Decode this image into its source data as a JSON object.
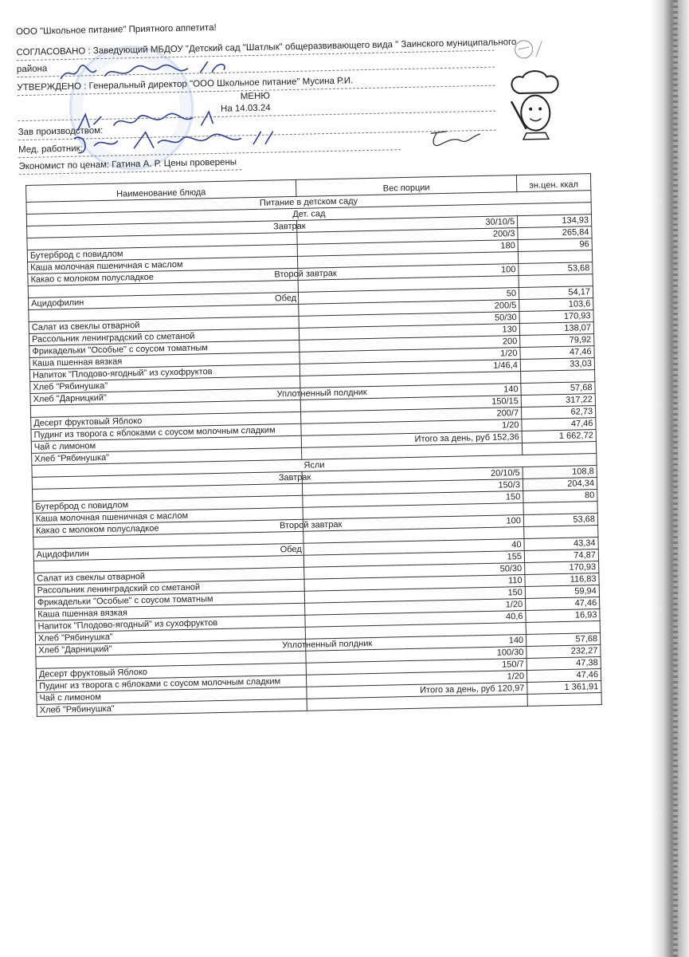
{
  "header": {
    "company": "ООО \"Школьное питание\" Приятного аппетита!",
    "agreed": "СОГЛАСОВАНО : Заведующий МБДОУ \"Детский сад \"Шатлык\" общеразвивающего вида \" Заинского муниципального",
    "agreed_cont": "района",
    "approved": "УТВЕРЖДЕНО : Генеральный директор \"ООО Школьное питание\" Мусина Р.И.",
    "menu_title": "МЕНЮ",
    "date": "На 14.03.24",
    "production_head": "Зав производством:",
    "medic": "Мед. работник:",
    "economist": "Экономист по ценам: Гатина А. Р.   Цены проверены"
  },
  "table": {
    "col_name": "Наименование блюда",
    "col_weight": "Вес порции",
    "col_kcal": "эн.цен. ккал",
    "title": "Питание в детском саду",
    "groups": [
      {
        "label": "Дет. сад",
        "rows": [
          {
            "name": "",
            "mid": "Завтрак",
            "weight": "30/10/5",
            "kcal": "134,93"
          },
          {
            "name": "",
            "mid": "",
            "weight": "200/3",
            "kcal": "265,84"
          },
          {
            "name": "Бутерброд с повидлом",
            "mid": "",
            "weight": "180",
            "kcal": "96"
          },
          {
            "name": "Каша молочная пшеничная с маслом",
            "mid": "",
            "weight": "",
            "kcal": ""
          },
          {
            "name": "Какао с молоком полусладкое",
            "mid": "Второй завтрак",
            "weight": "100",
            "kcal": "53,68"
          },
          {
            "name": "",
            "mid": "",
            "weight": "",
            "kcal": ""
          },
          {
            "name": "Ацидофилин",
            "mid": "Обед",
            "weight": "50",
            "kcal": "54,17"
          },
          {
            "name": "",
            "mid": "",
            "weight": "200/5",
            "kcal": "103,6"
          },
          {
            "name": "Салат из свеклы отварной",
            "mid": "",
            "weight": "50/30",
            "kcal": "170,93"
          },
          {
            "name": "Рассольник ленинградский со сметаной",
            "mid": "",
            "weight": "130",
            "kcal": "138,07"
          },
          {
            "name": "Фрикадельки \"Особые\" с соусом томатным",
            "mid": "",
            "weight": "200",
            "kcal": "79,92"
          },
          {
            "name": "Каша пшенная вязкая",
            "mid": "",
            "weight": "1/20",
            "kcal": "47,46"
          },
          {
            "name": "Напиток \"Плодово-ягодный\" из сухофруктов",
            "mid": "",
            "weight": "1/46,4",
            "kcal": "33,03"
          },
          {
            "name": "Хлеб \"Рябинушка\"",
            "mid": "",
            "weight": "",
            "kcal": ""
          },
          {
            "name": "Хлеб \"Дарницкий\"",
            "mid": "Уплотненный полдник",
            "weight": "140",
            "kcal": "57,68"
          },
          {
            "name": "",
            "mid": "",
            "weight": "150/15",
            "kcal": "317,22"
          },
          {
            "name": "Десерт фруктовый Яблоко",
            "mid": "",
            "weight": "200/7",
            "kcal": "62,73"
          },
          {
            "name": "Пудинг из творога с яблоками с соусом молочным сладким",
            "mid": "",
            "weight": "1/20",
            "kcal": "47,46"
          },
          {
            "name": "Чай с лимоном",
            "mid": "",
            "total": "Итого за день, руб 152,36",
            "weight": "",
            "kcal": "1 662,72"
          },
          {
            "name": "Хлеб \"Рябинушка\"",
            "mid": "",
            "weight": "",
            "kcal": ""
          }
        ]
      },
      {
        "label": "Ясли",
        "rows": [
          {
            "name": "",
            "mid": "Завтрак",
            "weight": "20/10/5",
            "kcal": "108,8"
          },
          {
            "name": "",
            "mid": "",
            "weight": "150/3",
            "kcal": "204,34"
          },
          {
            "name": "Бутерброд с повидлом",
            "mid": "",
            "weight": "150",
            "kcal": "80"
          },
          {
            "name": "Каша молочная пшеничная с маслом",
            "mid": "",
            "weight": "",
            "kcal": ""
          },
          {
            "name": "Какао с молоком полусладкое",
            "mid": "Второй завтрак",
            "weight": "100",
            "kcal": "53,68"
          },
          {
            "name": "",
            "mid": "",
            "weight": "",
            "kcal": ""
          },
          {
            "name": "Ацидофилин",
            "mid": "Обед",
            "weight": "40",
            "kcal": "43,34"
          },
          {
            "name": "",
            "mid": "",
            "weight": "155",
            "kcal": "74,87"
          },
          {
            "name": "Салат из свеклы отварной",
            "mid": "",
            "weight": "50/30",
            "kcal": "170,93"
          },
          {
            "name": "Рассольник ленинградский со сметаной",
            "mid": "",
            "weight": "110",
            "kcal": "116,83"
          },
          {
            "name": "Фрикадельки \"Особые\" с соусом томатным",
            "mid": "",
            "weight": "150",
            "kcal": "59,94"
          },
          {
            "name": "Каша пшенная вязкая",
            "mid": "",
            "weight": "1/20",
            "kcal": "47,46"
          },
          {
            "name": "Напиток \"Плодово-ягодный\" из сухофруктов",
            "mid": "",
            "weight": "40,6",
            "kcal": "16,93"
          },
          {
            "name": "Хлеб \"Рябинушка\"",
            "mid": "",
            "weight": "",
            "kcal": ""
          },
          {
            "name": "Хлеб \"Дарницкий\"",
            "mid": "Уплотненный полдник",
            "weight": "140",
            "kcal": "57,68"
          },
          {
            "name": "",
            "mid": "",
            "weight": "100/30",
            "kcal": "232,27"
          },
          {
            "name": "Десерт фруктовый Яблоко",
            "mid": "",
            "weight": "150/7",
            "kcal": "47,38"
          },
          {
            "name": "Пудинг из творога с яблоками с соусом молочным сладким",
            "mid": "",
            "weight": "1/20",
            "kcal": "47,46"
          },
          {
            "name": "Чай с лимоном",
            "mid": "",
            "total": "Итого за день, руб 120,97",
            "weight": "",
            "kcal": "1 361,91"
          },
          {
            "name": "Хлеб \"Рябинушка\"",
            "mid": "",
            "weight": "",
            "kcal": ""
          }
        ]
      }
    ]
  },
  "colors": {
    "ink": "#222222",
    "signature": "#2a3f9a",
    "stamp": "#5a8cd2"
  }
}
